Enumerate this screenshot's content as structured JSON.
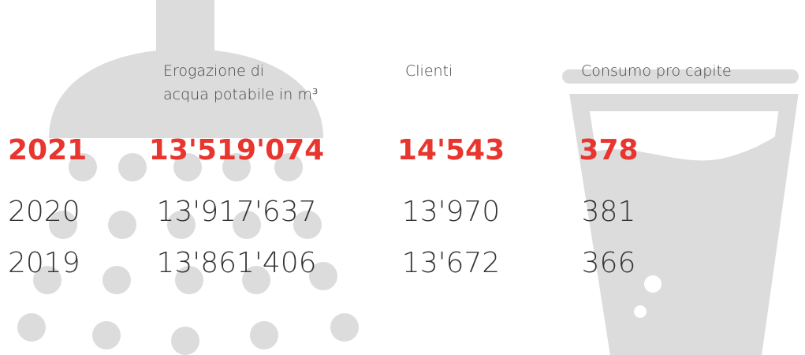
{
  "header": {
    "columns": [
      [
        "Erogazione di",
        "acqua potabile in m³"
      ],
      [
        "Clienti"
      ],
      [
        "Consumo pro capite"
      ]
    ]
  },
  "table": {
    "rows": [
      [
        "2021",
        "13'519'074",
        "14'543",
        "378"
      ],
      [
        "2020",
        "13'917'637",
        "13'970",
        "381"
      ],
      [
        "2019",
        "13'861'406",
        "13'672",
        "366"
      ]
    ]
  }
}
